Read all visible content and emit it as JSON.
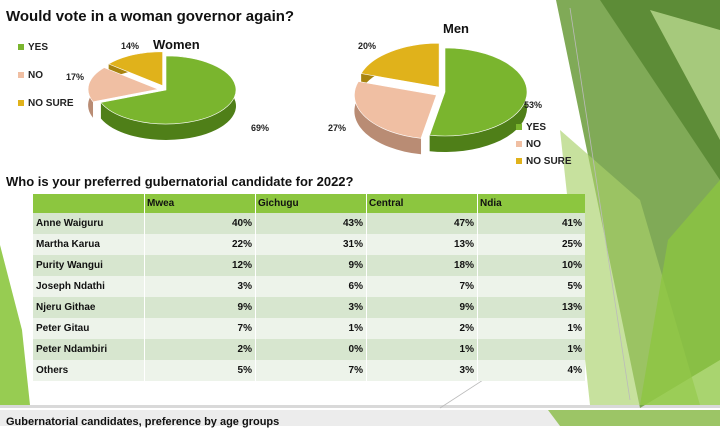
{
  "slide": {
    "title_pies": "Would vote in a woman governor again?",
    "title_table": "Who is your preferred gubernatorial candidate for 2022?",
    "title_bottom": "Gubernatorial candidates, preference by age groups"
  },
  "colors": {
    "yes": "#7ab52e",
    "no": "#f0bfa3",
    "not_sure": "#e0b21b",
    "header": "#8cc63f",
    "row_odd": "#d7e6cf",
    "row_even": "#edf3ea"
  },
  "chart_data": [
    {
      "type": "pie",
      "title": "Women",
      "legend_position": "left",
      "slices": [
        {
          "name": "YES",
          "value": 69,
          "label": "69%"
        },
        {
          "name": "NO",
          "value": 17,
          "label": "17%"
        },
        {
          "name": "NO SURE",
          "value": 14,
          "label": "14%"
        }
      ]
    },
    {
      "type": "pie",
      "title": "Men",
      "legend_position": "bottom-right",
      "slices": [
        {
          "name": "YES",
          "value": 53,
          "label": "53%"
        },
        {
          "name": "NO",
          "value": 27,
          "label": "27%"
        },
        {
          "name": "NO SURE",
          "value": 20,
          "label": "20%"
        }
      ]
    },
    {
      "type": "table",
      "columns": [
        "",
        "Mwea",
        "Gichugu",
        "Central",
        "Ndia"
      ],
      "rows": [
        {
          "name": "Anne Waiguru",
          "values": [
            "40%",
            "43%",
            "47%",
            "41%"
          ]
        },
        {
          "name": "Martha Karua",
          "values": [
            "22%",
            "31%",
            "13%",
            "25%"
          ]
        },
        {
          "name": "Purity Wangui",
          "values": [
            "12%",
            "9%",
            "18%",
            "10%"
          ]
        },
        {
          "name": "Joseph Ndathi",
          "values": [
            "3%",
            "6%",
            "7%",
            "5%"
          ]
        },
        {
          "name": "Njeru Githae",
          "values": [
            "9%",
            "3%",
            "9%",
            "13%"
          ]
        },
        {
          "name": "Peter Gitau",
          "values": [
            "7%",
            "1%",
            "2%",
            "1%"
          ]
        },
        {
          "name": "Peter Ndambiri",
          "values": [
            "2%",
            "0%",
            "1%",
            "1%"
          ]
        },
        {
          "name": "Others",
          "values": [
            "5%",
            "7%",
            "3%",
            "4%"
          ]
        }
      ]
    }
  ]
}
